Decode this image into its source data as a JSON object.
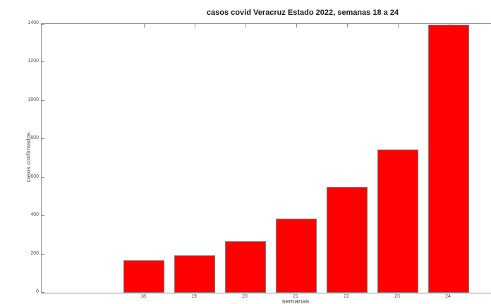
{
  "chart_data": {
    "type": "bar",
    "title": "casos covid Veracruz Estado 2022, semanas 18 a 24",
    "xlabel": "semanas",
    "ylabel": "casos confirmados",
    "categories": [
      "18",
      "19",
      "20",
      "21",
      "22",
      "23",
      "24"
    ],
    "values": [
      170,
      195,
      270,
      385,
      550,
      745,
      1395
    ],
    "yticks": [
      0,
      200,
      400,
      600,
      800,
      1000,
      1200,
      1400
    ],
    "ylim": [
      0,
      1400
    ],
    "grid": false,
    "legend": "none",
    "bar_color": "#ff0000",
    "bar_edge_color": "#7e7e7e",
    "axis_color": "#8f8f8f",
    "tick_label_color": "#555555",
    "title_color": "#1a1a1a"
  }
}
